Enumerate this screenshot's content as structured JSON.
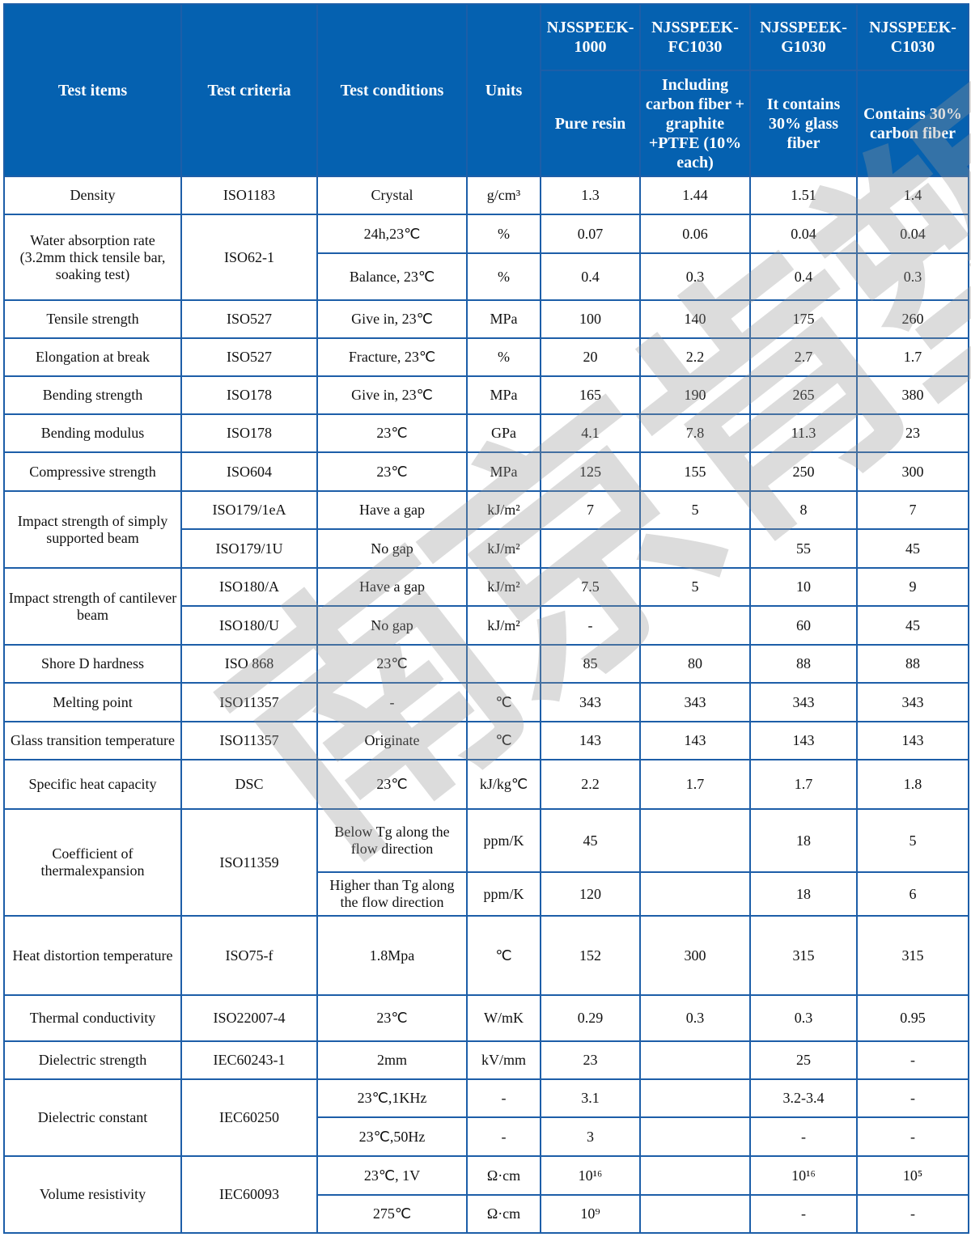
{
  "watermark": "南京肯塑",
  "colors": {
    "header_bg": "#0561b0",
    "border": "#1d5ea8"
  },
  "header": {
    "test_items": "Test items",
    "test_criteria": "Test criteria",
    "test_conditions": "Test conditions",
    "units": "Units",
    "products": [
      {
        "name": "NJSSPEEK-1000",
        "description": "Pure resin"
      },
      {
        "name": "NJSSPEEK-FC1030",
        "description": "Including carbon fiber + graphite +PTFE (10% each)"
      },
      {
        "name": "NJSSPEEK-G1030",
        "description": "It contains 30% glass fiber"
      },
      {
        "name": "NJSSPEEK-C1030",
        "description": "Contains 30% carbon fiber"
      }
    ]
  },
  "rows": [
    [
      {
        "t": "Density"
      },
      {
        "t": "ISO1183"
      },
      {
        "t": "Crystal"
      },
      {
        "t": "g/cm³"
      },
      {
        "t": "1.3"
      },
      {
        "t": "1.44"
      },
      {
        "t": "1.51"
      },
      {
        "t": "1.4"
      }
    ],
    [
      {
        "t": "Water absorption rate (3.2mm thick tensile bar, soaking test)",
        "rs": 2
      },
      {
        "t": "ISO62-1",
        "rs": 2
      },
      {
        "t": "24h,23℃"
      },
      {
        "t": "%"
      },
      {
        "t": "0.07"
      },
      {
        "t": "0.06"
      },
      {
        "t": "0.04"
      },
      {
        "t": "0.04"
      }
    ],
    [
      {
        "t": "Balance, 23℃"
      },
      {
        "t": "%"
      },
      {
        "t": "0.4"
      },
      {
        "t": "0.3"
      },
      {
        "t": "0.4"
      },
      {
        "t": "0.3"
      }
    ],
    [
      {
        "t": "Tensile strength"
      },
      {
        "t": "ISO527"
      },
      {
        "t": "Give in, 23℃"
      },
      {
        "t": "MPa"
      },
      {
        "t": "100"
      },
      {
        "t": "140"
      },
      {
        "t": "175"
      },
      {
        "t": "260"
      }
    ],
    [
      {
        "t": "Elongation at break"
      },
      {
        "t": "ISO527"
      },
      {
        "t": "Fracture, 23℃"
      },
      {
        "t": "%"
      },
      {
        "t": "20"
      },
      {
        "t": "2.2"
      },
      {
        "t": "2.7"
      },
      {
        "t": "1.7"
      }
    ],
    [
      {
        "t": "Bending strength"
      },
      {
        "t": "ISO178"
      },
      {
        "t": "Give in, 23℃"
      },
      {
        "t": "MPa"
      },
      {
        "t": "165"
      },
      {
        "t": "190"
      },
      {
        "t": "265"
      },
      {
        "t": "380"
      }
    ],
    [
      {
        "t": "Bending modulus"
      },
      {
        "t": "ISO178"
      },
      {
        "t": "23℃"
      },
      {
        "t": "GPa"
      },
      {
        "t": "4.1"
      },
      {
        "t": "7.8"
      },
      {
        "t": "11.3"
      },
      {
        "t": "23"
      }
    ],
    [
      {
        "t": "Compressive strength"
      },
      {
        "t": "ISO604"
      },
      {
        "t": "23℃"
      },
      {
        "t": "MPa"
      },
      {
        "t": "125"
      },
      {
        "t": "155"
      },
      {
        "t": "250"
      },
      {
        "t": "300"
      }
    ],
    [
      {
        "t": "Impact strength of simply supported beam",
        "rs": 2
      },
      {
        "t": "ISO179/1eA"
      },
      {
        "t": "Have a gap"
      },
      {
        "t": "kJ/m²"
      },
      {
        "t": "7"
      },
      {
        "t": "5"
      },
      {
        "t": "8"
      },
      {
        "t": "7"
      }
    ],
    [
      {
        "t": "ISO179/1U"
      },
      {
        "t": "No gap"
      },
      {
        "t": "kJ/m²"
      },
      {
        "t": ""
      },
      {
        "t": ""
      },
      {
        "t": "55"
      },
      {
        "t": "45"
      }
    ],
    [
      {
        "t": "Impact strength of cantilever beam",
        "rs": 2
      },
      {
        "t": "ISO180/A"
      },
      {
        "t": "Have a gap"
      },
      {
        "t": "kJ/m²"
      },
      {
        "t": "7.5"
      },
      {
        "t": "5"
      },
      {
        "t": "10"
      },
      {
        "t": "9"
      }
    ],
    [
      {
        "t": "ISO180/U"
      },
      {
        "t": "No gap"
      },
      {
        "t": "kJ/m²"
      },
      {
        "t": "-"
      },
      {
        "t": ""
      },
      {
        "t": "60"
      },
      {
        "t": "45"
      }
    ],
    [
      {
        "t": "Shore D hardness"
      },
      {
        "t": "ISO 868"
      },
      {
        "t": "23℃"
      },
      {
        "t": ""
      },
      {
        "t": "85"
      },
      {
        "t": "80"
      },
      {
        "t": "88"
      },
      {
        "t": "88"
      }
    ],
    [
      {
        "t": "Melting point"
      },
      {
        "t": "ISO11357"
      },
      {
        "t": "-"
      },
      {
        "t": "℃"
      },
      {
        "t": "343"
      },
      {
        "t": "343"
      },
      {
        "t": "343"
      },
      {
        "t": "343"
      }
    ],
    [
      {
        "t": "Glass transition temperature"
      },
      {
        "t": "ISO11357"
      },
      {
        "t": "Originate"
      },
      {
        "t": "℃"
      },
      {
        "t": "143"
      },
      {
        "t": "143"
      },
      {
        "t": "143"
      },
      {
        "t": "143"
      }
    ],
    [
      {
        "t": "Specific heat capacity"
      },
      {
        "t": "DSC"
      },
      {
        "t": "23℃"
      },
      {
        "t": "kJ/kg℃"
      },
      {
        "t": "2.2"
      },
      {
        "t": "1.7"
      },
      {
        "t": "1.7"
      },
      {
        "t": "1.8"
      }
    ],
    [
      {
        "t": "Coefficient of thermalexpansion",
        "rs": 2
      },
      {
        "t": "ISO11359",
        "rs": 2
      },
      {
        "t": "Below Tg along the flow direction"
      },
      {
        "t": "ppm/K"
      },
      {
        "t": "45"
      },
      {
        "t": ""
      },
      {
        "t": "18"
      },
      {
        "t": "5"
      }
    ],
    [
      {
        "t": "Higher than Tg along the flow direction"
      },
      {
        "t": "ppm/K"
      },
      {
        "t": "120"
      },
      {
        "t": ""
      },
      {
        "t": "18"
      },
      {
        "t": "6"
      }
    ],
    [
      {
        "t": "Heat distortion temperature"
      },
      {
        "t": "ISO75-f"
      },
      {
        "t": "1.8Mpa"
      },
      {
        "t": "℃"
      },
      {
        "t": "152"
      },
      {
        "t": "300"
      },
      {
        "t": "315"
      },
      {
        "t": "315"
      }
    ],
    [
      {
        "t": "Thermal conductivity"
      },
      {
        "t": "ISO22007-4"
      },
      {
        "t": "23℃"
      },
      {
        "t": "W/mK"
      },
      {
        "t": "0.29"
      },
      {
        "t": "0.3"
      },
      {
        "t": "0.3"
      },
      {
        "t": "0.95"
      }
    ],
    [
      {
        "t": "Dielectric strength"
      },
      {
        "t": "IEC60243-1"
      },
      {
        "t": "2mm"
      },
      {
        "t": "kV/mm"
      },
      {
        "t": "23"
      },
      {
        "t": ""
      },
      {
        "t": "25"
      },
      {
        "t": "-"
      }
    ],
    [
      {
        "t": "Dielectric constant",
        "rs": 2
      },
      {
        "t": "IEC60250",
        "rs": 2
      },
      {
        "t": "23℃,1KHz"
      },
      {
        "t": "-"
      },
      {
        "t": "3.1"
      },
      {
        "t": ""
      },
      {
        "t": "3.2-3.4"
      },
      {
        "t": "-"
      }
    ],
    [
      {
        "t": "23℃,50Hz"
      },
      {
        "t": "-"
      },
      {
        "t": "3"
      },
      {
        "t": ""
      },
      {
        "t": "-"
      },
      {
        "t": "-"
      }
    ],
    [
      {
        "t": "Volume resistivity",
        "rs": 2
      },
      {
        "t": "IEC60093",
        "rs": 2
      },
      {
        "t": "23℃, 1V"
      },
      {
        "t": "Ω·cm"
      },
      {
        "t": "10¹⁶"
      },
      {
        "t": ""
      },
      {
        "t": "10¹⁶"
      },
      {
        "t": "10⁵"
      }
    ],
    [
      {
        "t": "275℃"
      },
      {
        "t": "Ω·cm"
      },
      {
        "t": "10⁹"
      },
      {
        "t": ""
      },
      {
        "t": "-"
      },
      {
        "t": "-"
      }
    ]
  ]
}
